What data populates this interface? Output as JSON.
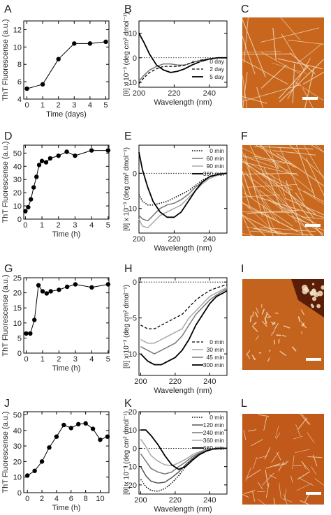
{
  "chart_data": [
    {
      "panel": "A",
      "type": "line",
      "xlabel": "Time (days)",
      "ylabel": "ThT Fluorescense (a.u.)",
      "xlim": [
        -0.2,
        5.2
      ],
      "ylim": [
        4,
        13
      ],
      "xticks": [
        0,
        1,
        2,
        3,
        4,
        5
      ],
      "yticks": [
        4,
        6,
        8,
        10,
        12
      ],
      "x": [
        0,
        1,
        2,
        3,
        4,
        5
      ],
      "series": [
        {
          "values": [
            5.2,
            5.7,
            8.6,
            10.4,
            10.4,
            10.6
          ]
        }
      ]
    },
    {
      "panel": "B",
      "type": "line",
      "xlabel": "Wavelength (nm)",
      "ylabel": "[θ] x 10⁻³ (deg cm² dmol⁻¹)",
      "xlim": [
        200,
        250
      ],
      "ylim": [
        -12,
        15
      ],
      "xticks": [
        200,
        220,
        240
      ],
      "yticks": [
        -10,
        0,
        10
      ],
      "zero_line": true,
      "x": [
        200,
        203,
        206,
        210,
        214,
        218,
        222,
        226,
        230,
        235,
        240,
        245,
        250
      ],
      "legend_position": "lower-right",
      "series": [
        {
          "name": "0 day",
          "style": "gray",
          "values": [
            -9.5,
            -7,
            -5,
            -3.5,
            -2.5,
            -2.5,
            -3,
            -3,
            -2,
            -1,
            -0.5,
            0,
            0
          ]
        },
        {
          "name": "2 day",
          "style": "dashed",
          "values": [
            -10.5,
            -8,
            -6,
            -4.5,
            -3.5,
            -3.5,
            -3.5,
            -3,
            -2,
            -1,
            -0.5,
            0,
            0
          ]
        },
        {
          "name": "5 day",
          "style": "black",
          "values": [
            10,
            6,
            1.5,
            -3,
            -5,
            -6,
            -5.5,
            -4.5,
            -3,
            -1.5,
            -0.5,
            0,
            0
          ]
        }
      ]
    },
    {
      "panel": "D",
      "type": "line",
      "xlabel": "Time (h)",
      "ylabel": "ThT Fluorescense (a.u.)",
      "xlim": [
        -0.1,
        5.05
      ],
      "ylim": [
        0,
        56
      ],
      "xticks": [
        0,
        1,
        2,
        3,
        4,
        5
      ],
      "yticks": [
        0,
        10,
        20,
        30,
        40,
        50
      ],
      "x": [
        0,
        0.17,
        0.33,
        0.5,
        0.67,
        0.83,
        1,
        1.25,
        1.5,
        2,
        2.5,
        3,
        4,
        5
      ],
      "series": [
        {
          "values": [
            6,
            9,
            15,
            24,
            32,
            41,
            44,
            43,
            46,
            48,
            51,
            48,
            52,
            52
          ]
        }
      ]
    },
    {
      "panel": "E",
      "type": "line",
      "xlabel": "Wavelength (nm)",
      "ylabel": "[θ] x 10⁻³ (deg cm² dmol⁻¹)",
      "xlim": [
        200,
        250
      ],
      "ylim": [
        -17,
        8
      ],
      "xticks": [
        200,
        220,
        240
      ],
      "yticks": [
        -10,
        0
      ],
      "zero_line": true,
      "x": [
        200,
        202,
        205,
        208,
        212,
        216,
        220,
        224,
        228,
        232,
        236,
        240,
        245,
        250
      ],
      "legend_position": "top-right",
      "series": [
        {
          "name": "0 min",
          "style": "dotted",
          "values": [
            -6,
            -8,
            -9,
            -9,
            -8.5,
            -8,
            -7,
            -6,
            -5,
            -3.5,
            -2,
            -1,
            -0.3,
            0
          ]
        },
        {
          "name": "60 min",
          "style": "gray",
          "values": [
            -12,
            -13,
            -13.5,
            -12,
            -10,
            -9,
            -8.5,
            -7.5,
            -6,
            -4,
            -2.5,
            -1,
            -0.3,
            0
          ]
        },
        {
          "name": "90 min",
          "style": "lightgray",
          "values": [
            -13,
            -15,
            -15.5,
            -14,
            -12,
            -11,
            -10,
            -9,
            -7,
            -5,
            -3,
            -1.5,
            -0.5,
            0
          ]
        },
        {
          "name": "360 min",
          "style": "black",
          "values": [
            6,
            1,
            -4,
            -8,
            -11,
            -12.5,
            -12.5,
            -11,
            -8,
            -5,
            -2.5,
            -1,
            -0.3,
            0
          ]
        }
      ]
    },
    {
      "panel": "G",
      "type": "line",
      "xlabel": "Time (h)",
      "ylabel": "ThT Fluorescense (a.u.)",
      "xlim": [
        -0.15,
        5.05
      ],
      "ylim": [
        0,
        25
      ],
      "xticks": [
        0,
        1,
        2,
        3,
        4,
        5
      ],
      "yticks": [
        0,
        5,
        10,
        15,
        20,
        25
      ],
      "x": [
        0,
        0.25,
        0.5,
        0.75,
        1,
        1.25,
        1.5,
        2,
        2.5,
        3,
        4,
        5
      ],
      "series": [
        {
          "values": [
            6.5,
            6.5,
            11,
            22.5,
            20.5,
            19.8,
            20.5,
            21,
            22,
            22.8,
            21.8,
            22.8
          ]
        }
      ]
    },
    {
      "panel": "H",
      "type": "line",
      "xlabel": "Wavelength (nm)",
      "ylabel": "[θ] x 10⁻³ (deg cm² dmol⁻¹)",
      "xlim": [
        199,
        250
      ],
      "ylim": [
        -13,
        0.6
      ],
      "xticks": [
        200,
        220,
        240
      ],
      "yticks": [
        -10,
        -5,
        0
      ],
      "zero_line": true,
      "x": [
        200,
        204,
        208,
        212,
        216,
        220,
        224,
        228,
        232,
        236,
        240,
        244,
        248,
        250
      ],
      "legend_position": "lower-right",
      "series": [
        {
          "name": "0 min",
          "style": "dashed",
          "values": [
            -6,
            -6.5,
            -6.5,
            -6,
            -5.5,
            -5,
            -4.5,
            -3.5,
            -2.5,
            -1.8,
            -1.2,
            -0.8,
            -0.5,
            -0.4
          ]
        },
        {
          "name": "30 min",
          "style": "lightgray",
          "values": [
            -8,
            -8.5,
            -8.5,
            -8,
            -7.5,
            -7,
            -6.5,
            -5,
            -4,
            -3,
            -2,
            -1.5,
            -1,
            -0.8
          ]
        },
        {
          "name": "45 min",
          "style": "gray",
          "values": [
            -9,
            -9.5,
            -10,
            -9.5,
            -9,
            -8.5,
            -7.5,
            -6,
            -4.5,
            -3.5,
            -2.5,
            -1.8,
            -1.2,
            -1
          ]
        },
        {
          "name": "300 min",
          "style": "black",
          "values": [
            -10,
            -11,
            -11.5,
            -11.5,
            -11,
            -10.5,
            -9.5,
            -8,
            -6,
            -4.5,
            -3,
            -2,
            -1.5,
            -1.2
          ]
        }
      ]
    },
    {
      "panel": "J",
      "type": "line",
      "xlabel": "Time (h)",
      "ylabel": "ThT Fluorescense (a.u.)",
      "xlim": [
        -0.5,
        11.2
      ],
      "ylim": [
        0,
        52
      ],
      "xticks": [
        0,
        2,
        4,
        6,
        8,
        10
      ],
      "yticks": [
        0,
        10,
        20,
        30,
        40,
        50
      ],
      "x": [
        0,
        1,
        2,
        3,
        4,
        5,
        6,
        7,
        8,
        9,
        10,
        11
      ],
      "series": [
        {
          "values": [
            11,
            14,
            20,
            29,
            36,
            43.5,
            41.5,
            44,
            44.5,
            41,
            34,
            36
          ]
        }
      ]
    },
    {
      "panel": "K",
      "type": "line",
      "xlabel": "Wavelength (nm)",
      "ylabel": "[θ] x 10⁻³ (deg cm² dmol⁻¹)",
      "xlim": [
        199,
        250
      ],
      "ylim": [
        -25,
        20
      ],
      "xticks": [
        200,
        220,
        240
      ],
      "yticks": [
        -20,
        -10,
        0,
        10,
        20
      ],
      "zero_line": true,
      "x": [
        200,
        203,
        206,
        210,
        214,
        218,
        222,
        226,
        230,
        234,
        238,
        242,
        246,
        250
      ],
      "legend_position": "top-right",
      "series": [
        {
          "name": "0 min",
          "style": "dotted",
          "values": [
            -17,
            -21,
            -23,
            -23.5,
            -22,
            -19,
            -15,
            -10,
            -6,
            -3,
            -1,
            -0.3,
            0,
            0
          ]
        },
        {
          "name": "120 min",
          "style": "darkgray",
          "values": [
            -10,
            -15,
            -18,
            -19,
            -18.5,
            -16,
            -13,
            -9,
            -5.5,
            -3,
            -1,
            -0.3,
            0,
            0
          ]
        },
        {
          "name": "240 min",
          "style": "gray",
          "values": [
            -3,
            -7,
            -11,
            -13,
            -14,
            -13,
            -10,
            -7.5,
            -4.5,
            -2.5,
            -1,
            -0.3,
            0,
            0
          ]
        },
        {
          "name": "360 min",
          "style": "lightgray",
          "values": [
            5,
            1,
            -4,
            -7,
            -9,
            -9.5,
            -8,
            -6,
            -3.5,
            -1.8,
            -0.7,
            -0.2,
            0,
            0
          ]
        },
        {
          "name": "660 min",
          "style": "black",
          "values": [
            10,
            10,
            7,
            2,
            -4,
            -9,
            -11.5,
            -10,
            -6.5,
            -3.5,
            -1.5,
            -0.4,
            0,
            0
          ]
        }
      ]
    }
  ],
  "figure": {
    "panel_letters": [
      "A",
      "B",
      "C",
      "D",
      "E",
      "F",
      "G",
      "H",
      "I",
      "J",
      "K",
      "L"
    ],
    "afm_panels": [
      {
        "letter": "C",
        "background": "#c8661e",
        "fibril_density": "medium",
        "fibril_style": "long"
      },
      {
        "letter": "F",
        "background": "#c8691f",
        "fibril_density": "dense",
        "fibril_style": "long"
      },
      {
        "letter": "I",
        "background": "#c4631d",
        "fibril_density": "sparse",
        "fibril_style": "clumps"
      },
      {
        "letter": "L",
        "background": "#c0591a",
        "fibril_density": "medium",
        "fibril_style": "short"
      }
    ]
  }
}
